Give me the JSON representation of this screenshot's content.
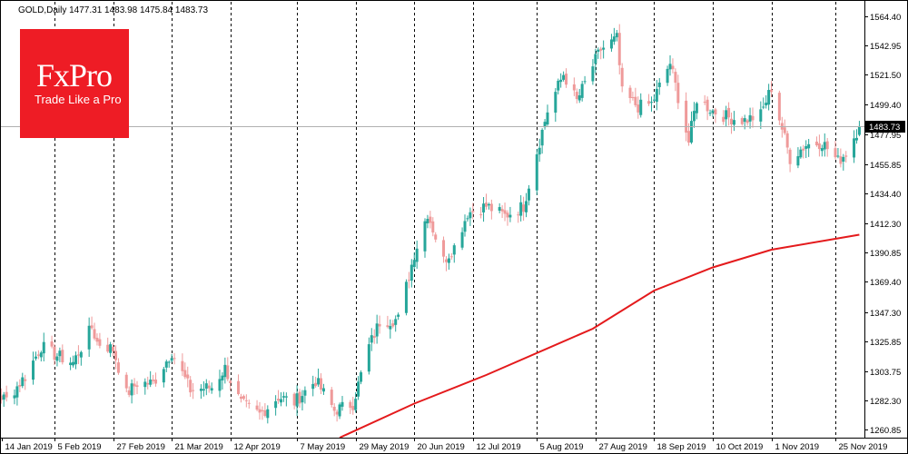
{
  "header": {
    "symbol": "GOLD,Daily",
    "open": "1477.31",
    "high": "1483.98",
    "low": "1475.84",
    "close": "1483.73"
  },
  "logo": {
    "brand": "FxPro",
    "tagline": "Trade Like a Pro"
  },
  "chart_data": {
    "type": "candlestick",
    "title": "GOLD,Daily",
    "ylim": [
      1255,
      1575
    ],
    "y_ticks": [
      "1564.40",
      "1542.95",
      "1521.50",
      "1499.40",
      "1477.95",
      "1455.85",
      "1434.40",
      "1412.30",
      "1390.85",
      "1369.40",
      "1347.30",
      "1325.85",
      "1303.75",
      "1282.30",
      "1260.85"
    ],
    "x_ticks": [
      "14 Jan 2019",
      "5 Feb 2019",
      "27 Feb 2019",
      "21 Mar 2019",
      "12 Apr 2019",
      "7 May 2019",
      "29 May 2019",
      "20 Jun 2019",
      "12 Jul 2019",
      "5 Aug 2019",
      "27 Aug 2019",
      "18 Sep 2019",
      "10 Oct 2019",
      "1 Nov 2019",
      "25 Nov 2019"
    ],
    "vertical_separators": [
      "5 Feb 2019",
      "27 Feb 2019",
      "21 Mar 2019",
      "12 Apr 2019",
      "7 May 2019",
      "29 May 2019",
      "20 Jun 2019",
      "12 Jul 2019",
      "5 Aug 2019",
      "27 Aug 2019",
      "18 Sep 2019",
      "10 Oct 2019",
      "1 Nov 2019",
      "25 Nov 2019"
    ],
    "current_price": "1483.73",
    "colors": {
      "up": "#26a69a",
      "down": "#ef9a9a",
      "ma": "#e41a1c",
      "price_line": "#b0b0b0",
      "price_label_bg": "#000000"
    },
    "close_anchors": [
      {
        "date": "2019-01-02",
        "close": 1285
      },
      {
        "date": "2019-01-10",
        "close": 1290
      },
      {
        "date": "2019-01-18",
        "close": 1283
      },
      {
        "date": "2019-01-25",
        "close": 1300
      },
      {
        "date": "2019-01-31",
        "close": 1322
      },
      {
        "date": "2019-02-05",
        "close": 1316
      },
      {
        "date": "2019-02-12",
        "close": 1310
      },
      {
        "date": "2019-02-19",
        "close": 1336
      },
      {
        "date": "2019-02-21",
        "close": 1325
      },
      {
        "date": "2019-02-27",
        "close": 1320
      },
      {
        "date": "2019-03-04",
        "close": 1287
      },
      {
        "date": "2019-03-08",
        "close": 1295
      },
      {
        "date": "2019-03-14",
        "close": 1295
      },
      {
        "date": "2019-03-21",
        "close": 1318
      },
      {
        "date": "2019-03-28",
        "close": 1290
      },
      {
        "date": "2019-04-05",
        "close": 1292
      },
      {
        "date": "2019-04-10",
        "close": 1306
      },
      {
        "date": "2019-04-16",
        "close": 1280
      },
      {
        "date": "2019-04-23",
        "close": 1272
      },
      {
        "date": "2019-04-30",
        "close": 1285
      },
      {
        "date": "2019-05-06",
        "close": 1281
      },
      {
        "date": "2019-05-14",
        "close": 1297
      },
      {
        "date": "2019-05-21",
        "close": 1275
      },
      {
        "date": "2019-05-28",
        "close": 1280
      },
      {
        "date": "2019-06-03",
        "close": 1322
      },
      {
        "date": "2019-06-07",
        "close": 1340
      },
      {
        "date": "2019-06-14",
        "close": 1342
      },
      {
        "date": "2019-06-20",
        "close": 1390
      },
      {
        "date": "2019-06-25",
        "close": 1420
      },
      {
        "date": "2019-07-01",
        "close": 1385
      },
      {
        "date": "2019-07-05",
        "close": 1395
      },
      {
        "date": "2019-07-10",
        "close": 1420
      },
      {
        "date": "2019-07-17",
        "close": 1425
      },
      {
        "date": "2019-07-24",
        "close": 1418
      },
      {
        "date": "2019-07-31",
        "close": 1425
      },
      {
        "date": "2019-08-05",
        "close": 1465
      },
      {
        "date": "2019-08-09",
        "close": 1495
      },
      {
        "date": "2019-08-15",
        "close": 1522
      },
      {
        "date": "2019-08-20",
        "close": 1502
      },
      {
        "date": "2019-08-26",
        "close": 1528
      },
      {
        "date": "2019-08-29",
        "close": 1540
      },
      {
        "date": "2019-09-04",
        "close": 1548
      },
      {
        "date": "2019-09-06",
        "close": 1508
      },
      {
        "date": "2019-09-12",
        "close": 1498
      },
      {
        "date": "2019-09-17",
        "close": 1500
      },
      {
        "date": "2019-09-24",
        "close": 1530
      },
      {
        "date": "2019-10-01",
        "close": 1472
      },
      {
        "date": "2019-10-04",
        "close": 1504
      },
      {
        "date": "2019-10-10",
        "close": 1495
      },
      {
        "date": "2019-10-16",
        "close": 1490
      },
      {
        "date": "2019-10-22",
        "close": 1488
      },
      {
        "date": "2019-10-28",
        "close": 1492
      },
      {
        "date": "2019-11-01",
        "close": 1512
      },
      {
        "date": "2019-11-05",
        "close": 1482
      },
      {
        "date": "2019-11-08",
        "close": 1460
      },
      {
        "date": "2019-11-14",
        "close": 1470
      },
      {
        "date": "2019-11-20",
        "close": 1472
      },
      {
        "date": "2019-11-26",
        "close": 1458
      },
      {
        "date": "2019-11-29",
        "close": 1464
      },
      {
        "date": "2019-12-04",
        "close": 1483.73
      }
    ],
    "ma_series": {
      "name": "",
      "points": [
        {
          "date": "2019-05-23",
          "value": 1255
        },
        {
          "date": "2019-06-20",
          "value": 1280
        },
        {
          "date": "2019-07-17",
          "value": 1301
        },
        {
          "date": "2019-08-26",
          "value": 1335
        },
        {
          "date": "2019-09-18",
          "value": 1363
        },
        {
          "date": "2019-10-10",
          "value": 1380
        },
        {
          "date": "2019-11-01",
          "value": 1393
        },
        {
          "date": "2019-11-25",
          "value": 1401
        },
        {
          "date": "2019-12-04",
          "value": 1404
        }
      ]
    }
  }
}
